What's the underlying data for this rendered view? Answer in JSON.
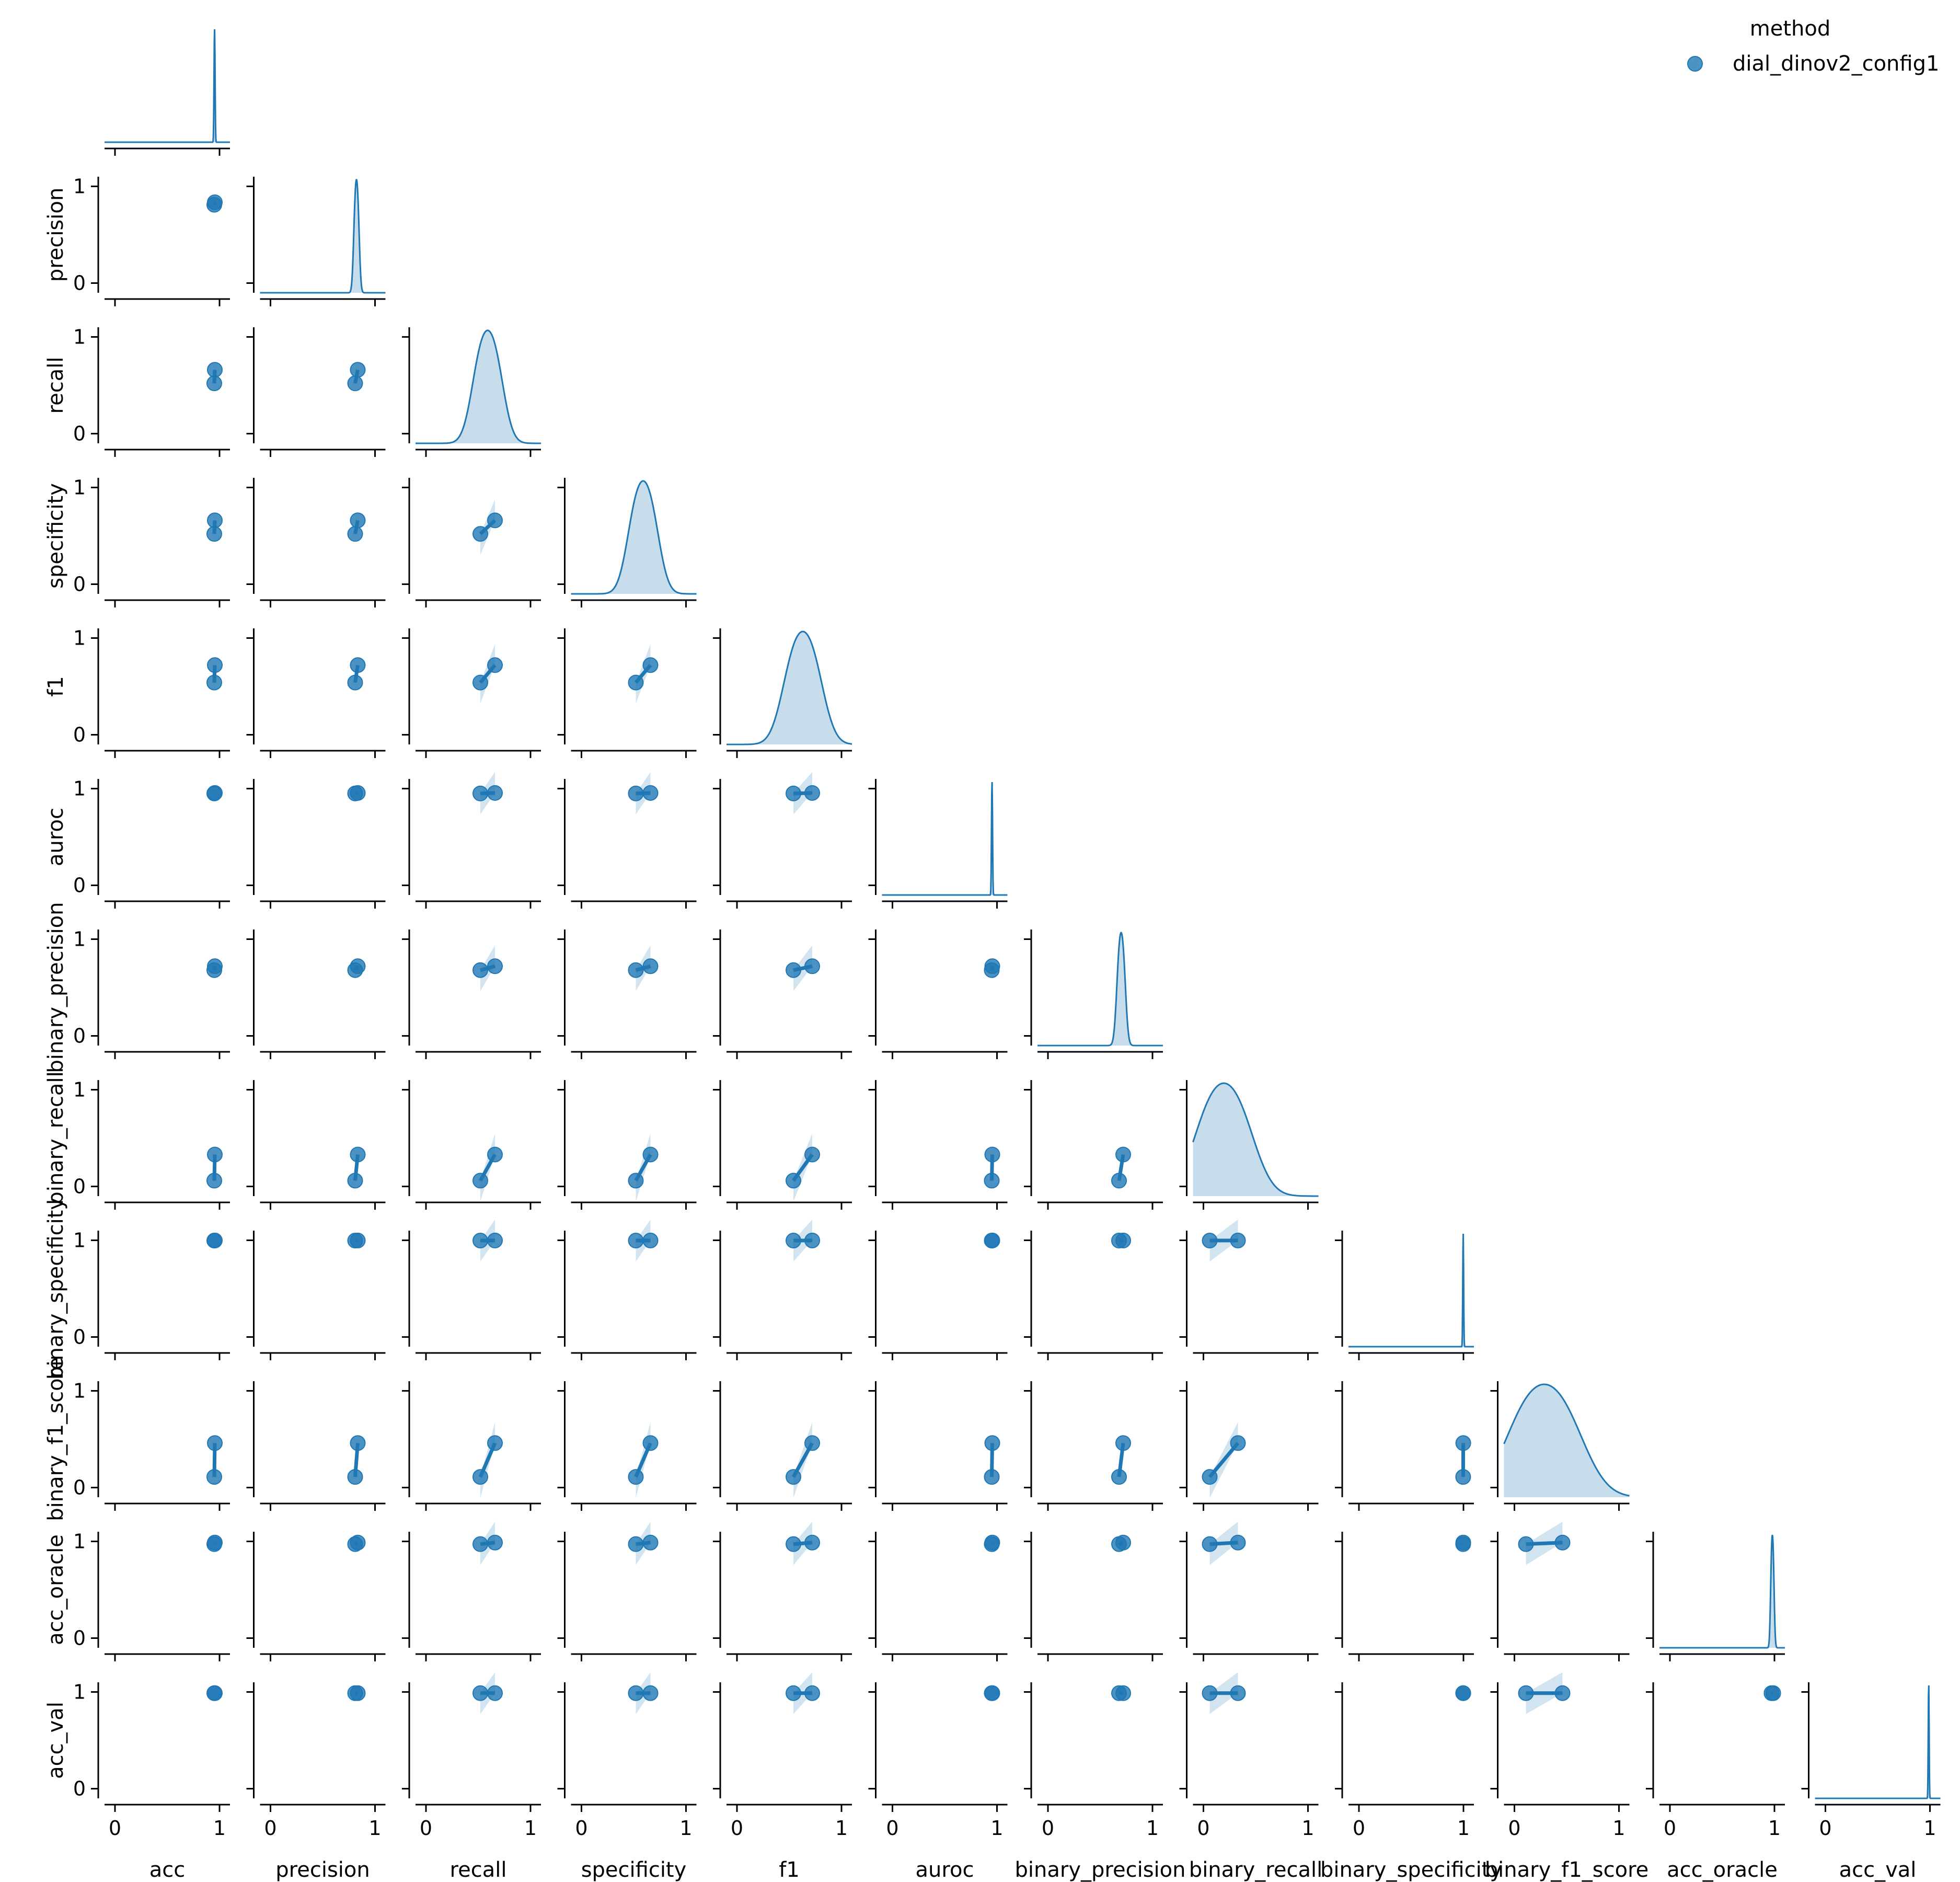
{
  "chart_data": {
    "type": "scatter",
    "kind": "pairplot-corner",
    "variables": [
      "acc",
      "precision",
      "recall",
      "specificity",
      "f1",
      "auroc",
      "binary_precision",
      "binary_recall",
      "binary_specificity",
      "binary_f1_score",
      "acc_oracle",
      "acc_val"
    ],
    "diag_kind": "kde",
    "corner": true,
    "axis_range": [
      -0.1,
      1.1
    ],
    "tick_values": [
      0,
      1
    ],
    "tick_labels": [
      "0",
      "1"
    ],
    "legend": {
      "title": "method",
      "position": "top-right",
      "entries": [
        {
          "label": "dial_dinov2_config1",
          "color": "#1f77b4"
        }
      ]
    },
    "series": [
      {
        "name": "dial_dinov2_config1",
        "color": "#1f77b4",
        "points": [
          {
            "acc": 0.955,
            "precision": 0.835,
            "recall": 0.66,
            "specificity": 0.66,
            "f1": 0.72,
            "auroc": 0.955,
            "binary_precision": 0.72,
            "binary_recall": 0.33,
            "binary_specificity": 0.998,
            "binary_f1_score": 0.46,
            "acc_oracle": 0.988,
            "acc_val": 0.988
          },
          {
            "acc": 0.95,
            "precision": 0.81,
            "recall": 0.52,
            "specificity": 0.52,
            "f1": 0.54,
            "auroc": 0.95,
            "binary_precision": 0.68,
            "binary_recall": 0.06,
            "binary_specificity": 0.997,
            "binary_f1_score": 0.11,
            "acc_oracle": 0.972,
            "acc_val": 0.988
          }
        ]
      }
    ]
  }
}
